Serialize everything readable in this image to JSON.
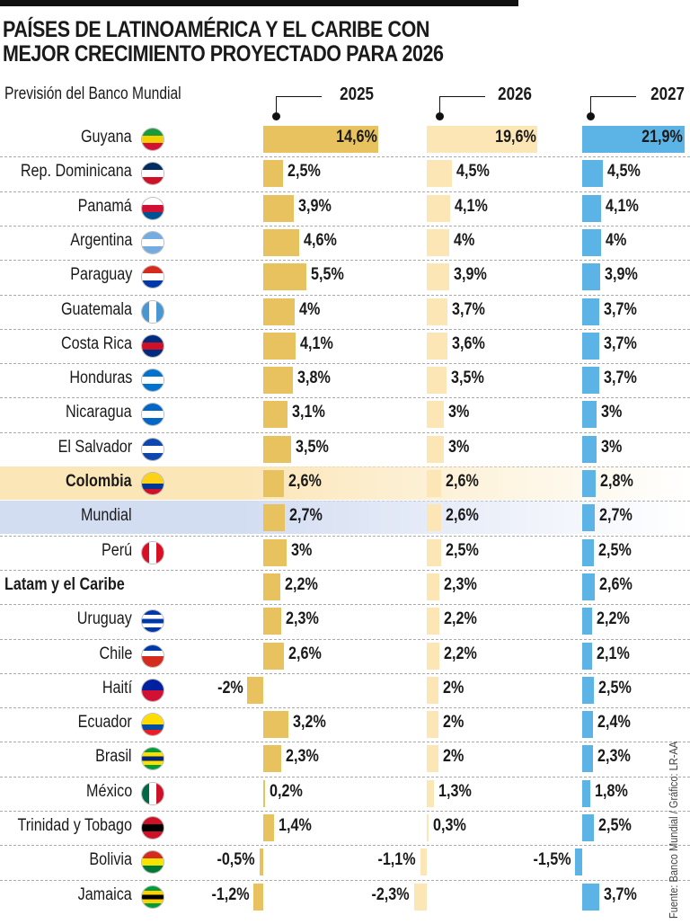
{
  "title_line1": "PAÍSES DE LATINOAMÉRICA Y EL CARIBE CON",
  "title_line2": "MEJOR CRECIMIENTO PROYECTADO PARA 2026",
  "subtitle": "Previsión del Banco Mundial",
  "source": "Fuente: Banco Mundial / Gráfico: LR-AA",
  "chart_data": {
    "type": "bar",
    "orientation": "horizontal",
    "unit": "%",
    "series": [
      {
        "name": "2025",
        "color": "#e9c260"
      },
      {
        "name": "2026",
        "color": "#fde6b5"
      },
      {
        "name": "2027",
        "color": "#5cb4e6"
      }
    ],
    "rows": [
      {
        "label": "Guyana",
        "values": [
          14.6,
          19.6,
          21.9
        ],
        "labels": [
          "14,6%",
          "19,6%",
          "21,9%"
        ],
        "flag": [
          "#1a9a3c",
          "#f5d000",
          "#d21034"
        ]
      },
      {
        "label": "Rep. Dominicana",
        "values": [
          2.5,
          4.5,
          4.5
        ],
        "labels": [
          "2,5%",
          "4,5%",
          "4,5%"
        ],
        "flag": [
          "#002d62",
          "#ffffff",
          "#ce1126"
        ]
      },
      {
        "label": "Panamá",
        "values": [
          3.9,
          4.1,
          4.1
        ],
        "labels": [
          "3,9%",
          "4,1%",
          "4,1%"
        ],
        "flag": [
          "#ffffff",
          "#d21034",
          "#005293"
        ]
      },
      {
        "label": "Argentina",
        "values": [
          4.6,
          4,
          4
        ],
        "labels": [
          "4,6%",
          "4%",
          "4%"
        ],
        "flag": [
          "#74acdf",
          "#ffffff",
          "#74acdf"
        ]
      },
      {
        "label": "Paraguay",
        "values": [
          5.5,
          3.9,
          3.9
        ],
        "labels": [
          "5,5%",
          "3,9%",
          "3,9%"
        ],
        "flag": [
          "#d52b1e",
          "#ffffff",
          "#0038a8"
        ]
      },
      {
        "label": "Guatemala",
        "values": [
          4,
          3.7,
          3.7
        ],
        "labels": [
          "4%",
          "3,7%",
          "3,7%"
        ],
        "flag": [
          "#4997d0",
          "#ffffff",
          "#4997d0"
        ],
        "vertical": true
      },
      {
        "label": "Costa Rica",
        "values": [
          4.1,
          3.6,
          3.7
        ],
        "labels": [
          "4,1%",
          "3,6%",
          "3,7%"
        ],
        "flag": [
          "#002b7f",
          "#ce1126",
          "#002b7f"
        ]
      },
      {
        "label": "Honduras",
        "values": [
          3.8,
          3.5,
          3.7
        ],
        "labels": [
          "3,8%",
          "3,5%",
          "3,7%"
        ],
        "flag": [
          "#0073cf",
          "#ffffff",
          "#0073cf"
        ]
      },
      {
        "label": "Nicaragua",
        "values": [
          3.1,
          3,
          3
        ],
        "labels": [
          "3,1%",
          "3%",
          "3%"
        ],
        "flag": [
          "#0067c6",
          "#ffffff",
          "#0067c6"
        ]
      },
      {
        "label": "El Salvador",
        "values": [
          3.5,
          3,
          3
        ],
        "labels": [
          "3,5%",
          "3%",
          "3%"
        ],
        "flag": [
          "#0f47af",
          "#ffffff",
          "#0f47af"
        ]
      },
      {
        "label": "Colombia",
        "values": [
          2.6,
          2.6,
          2.8
        ],
        "labels": [
          "2,6%",
          "2,6%",
          "2,8%"
        ],
        "flag": [
          "#fcd116",
          "#fcd116",
          "#003893",
          "#ce1126"
        ],
        "bold": true,
        "highlight": "#fbe6b8"
      },
      {
        "label": "Mundial",
        "values": [
          2.7,
          2.6,
          2.7
        ],
        "labels": [
          "2,7%",
          "2,6%",
          "2,7%"
        ],
        "highlight": "#d3ddf2"
      },
      {
        "label": "Perú",
        "values": [
          3,
          2.5,
          2.5
        ],
        "labels": [
          "3%",
          "2,5%",
          "2,5%"
        ],
        "flag": [
          "#d91023",
          "#ffffff",
          "#d91023"
        ],
        "vertical": true
      },
      {
        "label": "Latam y el Caribe",
        "values": [
          2.2,
          2.3,
          2.6
        ],
        "labels": [
          "2,2%",
          "2,3%",
          "2,6%"
        ],
        "aggregate": true
      },
      {
        "label": "Uruguay",
        "values": [
          2.3,
          2.2,
          2.2
        ],
        "labels": [
          "2,3%",
          "2,2%",
          "2,2%"
        ],
        "flag": [
          "#0038a8",
          "#ffffff",
          "#0038a8",
          "#ffffff",
          "#0038a8"
        ]
      },
      {
        "label": "Chile",
        "values": [
          2.6,
          2.2,
          2.1
        ],
        "labels": [
          "2,6%",
          "2,2%",
          "2,1%"
        ],
        "flag": [
          "#0039a6",
          "#ffffff",
          "#d52b1e",
          "#d52b1e"
        ]
      },
      {
        "label": "Haití",
        "values": [
          -2,
          2,
          2.5
        ],
        "labels": [
          "-2%",
          "2%",
          "2,5%"
        ],
        "flag": [
          "#00209f",
          "#d21034"
        ]
      },
      {
        "label": "Ecuador",
        "values": [
          3.2,
          2,
          2.4
        ],
        "labels": [
          "3,2%",
          "2%",
          "2,4%"
        ],
        "flag": [
          "#ffdd00",
          "#ffdd00",
          "#034ea2",
          "#ed1c24"
        ]
      },
      {
        "label": "Brasil",
        "values": [
          2.3,
          2,
          2.3
        ],
        "labels": [
          "2,3%",
          "2%",
          "2,3%"
        ],
        "flag": [
          "#009c3b",
          "#ffdf00",
          "#002776",
          "#ffdf00",
          "#009c3b"
        ]
      },
      {
        "label": "México",
        "values": [
          0.2,
          1.3,
          1.8
        ],
        "labels": [
          "0,2%",
          "1,3%",
          "1,8%"
        ],
        "flag": [
          "#006847",
          "#ffffff",
          "#ce1126"
        ],
        "vertical": true
      },
      {
        "label": "Trinidad y Tobago",
        "values": [
          1.4,
          0.3,
          2.5
        ],
        "labels": [
          "1,4%",
          "0,3%",
          "2,5%"
        ],
        "flag": [
          "#ce1126",
          "#000000",
          "#ce1126"
        ]
      },
      {
        "label": "Bolivia",
        "values": [
          -0.5,
          -1.1,
          -1.5
        ],
        "labels": [
          "-0,5%",
          "-1,1%",
          "-1,5%"
        ],
        "flag": [
          "#d52b1e",
          "#f9e300",
          "#007934"
        ]
      },
      {
        "label": "Jamaica",
        "values": [
          -1.2,
          -2.3,
          3.7
        ],
        "labels": [
          "-1,2%",
          "-2,3%",
          "3,7%"
        ],
        "flag": [
          "#009b3a",
          "#fed100",
          "#000000",
          "#fed100",
          "#009b3a"
        ]
      }
    ]
  }
}
